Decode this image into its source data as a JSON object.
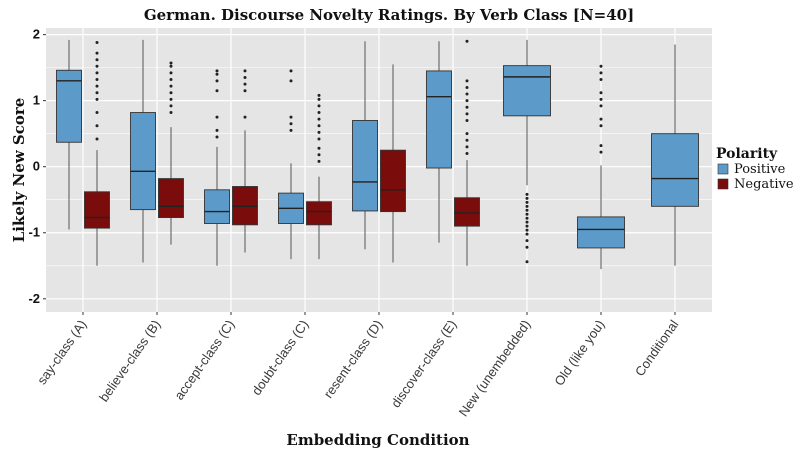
{
  "chart_data": {
    "type": "boxplot",
    "title": "German. Discourse Novelty Ratings. By Verb Class [N=40]",
    "xlabel": "Embedding Condition",
    "ylabel": "Likely New Score",
    "ylim": [
      -2.2,
      2.1
    ],
    "yticks": [
      -2,
      -1,
      0,
      1,
      2
    ],
    "grid": true,
    "legend": {
      "title": "Polarity",
      "position": "right",
      "entries": [
        {
          "name": "Positive",
          "color": "#5b9ac9"
        },
        {
          "name": "Negative",
          "color": "#7a0c0c"
        }
      ]
    },
    "categories": [
      "say-class (A)",
      "believe-class (B)",
      "accept-class (C)",
      "doubt-class (C)",
      "resent-class (D)",
      "discover-class (E)",
      "New (unembedded)",
      "Old (like you)",
      "Conditional"
    ],
    "series": [
      {
        "name": "Positive",
        "color": "#5b9ac9",
        "boxes": [
          {
            "category": "say-class (A)",
            "lower_whisker": -0.95,
            "q1": 0.37,
            "median": 1.3,
            "q3": 1.46,
            "upper_whisker": 1.92,
            "outliers": []
          },
          {
            "category": "believe-class (B)",
            "lower_whisker": -1.45,
            "q1": -0.65,
            "median": -0.07,
            "q3": 0.82,
            "upper_whisker": 1.92,
            "outliers": []
          },
          {
            "category": "accept-class (C)",
            "lower_whisker": -1.5,
            "q1": -0.86,
            "median": -0.68,
            "q3": -0.35,
            "upper_whisker": 0.3,
            "outliers": [
              0.45,
              0.55,
              0.75,
              1.15,
              1.3,
              1.4,
              1.45
            ]
          },
          {
            "category": "doubt-class (C)",
            "lower_whisker": -1.4,
            "q1": -0.86,
            "median": -0.63,
            "q3": -0.4,
            "upper_whisker": 0.05,
            "outliers": [
              0.55,
              0.65,
              0.75,
              1.3,
              1.45
            ]
          },
          {
            "category": "resent-class (D)",
            "lower_whisker": -1.25,
            "q1": -0.67,
            "median": -0.23,
            "q3": 0.7,
            "upper_whisker": 1.9,
            "outliers": []
          },
          {
            "category": "discover-class (E)",
            "lower_whisker": -1.15,
            "q1": -0.02,
            "median": 1.06,
            "q3": 1.45,
            "upper_whisker": 1.9,
            "outliers": []
          },
          {
            "category": "New (unembedded)",
            "lower_whisker": -0.28,
            "q1": 0.77,
            "median": 1.36,
            "q3": 1.53,
            "upper_whisker": 1.92,
            "outliers": [
              -0.42,
              -0.48,
              -0.54,
              -0.6,
              -0.66,
              -0.72,
              -0.78,
              -0.84,
              -0.9,
              -0.96,
              -1.02,
              -1.12,
              -1.22,
              -1.44
            ]
          },
          {
            "category": "Old (like you)",
            "lower_whisker": -1.55,
            "q1": -1.23,
            "median": -0.95,
            "q3": -0.76,
            "upper_whisker": 0.02,
            "outliers": [
              0.22,
              0.32,
              0.62,
              0.72,
              0.92,
              1.02,
              1.12,
              1.32,
              1.42,
              1.52
            ]
          },
          {
            "category": "Conditional",
            "lower_whisker": -1.5,
            "q1": -0.6,
            "median": -0.18,
            "q3": 0.5,
            "upper_whisker": 1.85,
            "outliers": []
          }
        ]
      },
      {
        "name": "Negative",
        "color": "#7a0c0c",
        "boxes": [
          {
            "category": "say-class (A)",
            "lower_whisker": -1.5,
            "q1": -0.93,
            "median": -0.77,
            "q3": -0.38,
            "upper_whisker": 0.25,
            "outliers": [
              0.42,
              0.62,
              0.82,
              1.02,
              1.12,
              1.22,
              1.32,
              1.42,
              1.52,
              1.62,
              1.72,
              1.88
            ]
          },
          {
            "category": "believe-class (B)",
            "lower_whisker": -1.18,
            "q1": -0.77,
            "median": -0.6,
            "q3": -0.18,
            "upper_whisker": 0.6,
            "outliers": [
              0.82,
              0.92,
              1.02,
              1.12,
              1.22,
              1.32,
              1.42,
              1.52,
              1.57
            ]
          },
          {
            "category": "accept-class (C)",
            "lower_whisker": -1.3,
            "q1": -0.88,
            "median": -0.6,
            "q3": -0.3,
            "upper_whisker": 0.55,
            "outliers": [
              0.75,
              1.15,
              1.25,
              1.35,
              1.45
            ]
          },
          {
            "category": "doubt-class (C)",
            "lower_whisker": -1.4,
            "q1": -0.88,
            "median": -0.68,
            "q3": -0.53,
            "upper_whisker": -0.15,
            "outliers": [
              0.08,
              0.18,
              0.28,
              0.42,
              0.52,
              0.62,
              0.72,
              0.82,
              0.92,
              1.02,
              1.08
            ]
          },
          {
            "category": "resent-class (D)",
            "lower_whisker": -1.45,
            "q1": -0.68,
            "median": -0.35,
            "q3": 0.25,
            "upper_whisker": 1.55,
            "outliers": []
          },
          {
            "category": "discover-class (E)",
            "lower_whisker": -1.5,
            "q1": -0.9,
            "median": -0.7,
            "q3": -0.47,
            "upper_whisker": 0.1,
            "outliers": [
              0.2,
              0.3,
              0.4,
              0.5,
              0.7,
              0.8,
              0.9,
              1.0,
              1.1,
              1.2,
              1.3,
              1.9
            ]
          },
          null,
          null,
          null
        ]
      }
    ]
  }
}
